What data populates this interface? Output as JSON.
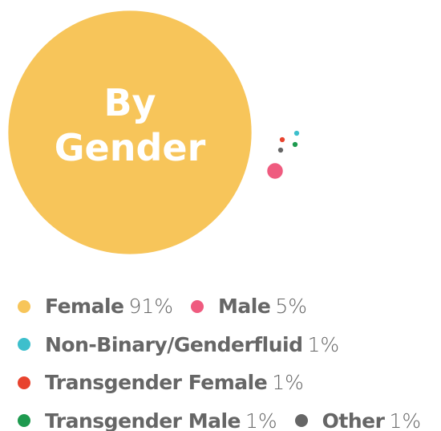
{
  "chart_data": {
    "type": "bubble",
    "title": "By Gender",
    "categories": [
      "Female",
      "Male",
      "Non-Binary/Genderfluid",
      "Transgender Female",
      "Transgender Male",
      "Other"
    ],
    "values": [
      91,
      5,
      1,
      1,
      1,
      1
    ],
    "value_labels": [
      "91%",
      "5%",
      "1%",
      "1%",
      "1%",
      "1%"
    ],
    "colors": [
      "#f7c55a",
      "#ef5b7f",
      "#3dbfcc",
      "#e8432e",
      "#1e9a4f",
      "#666666"
    ]
  }
}
